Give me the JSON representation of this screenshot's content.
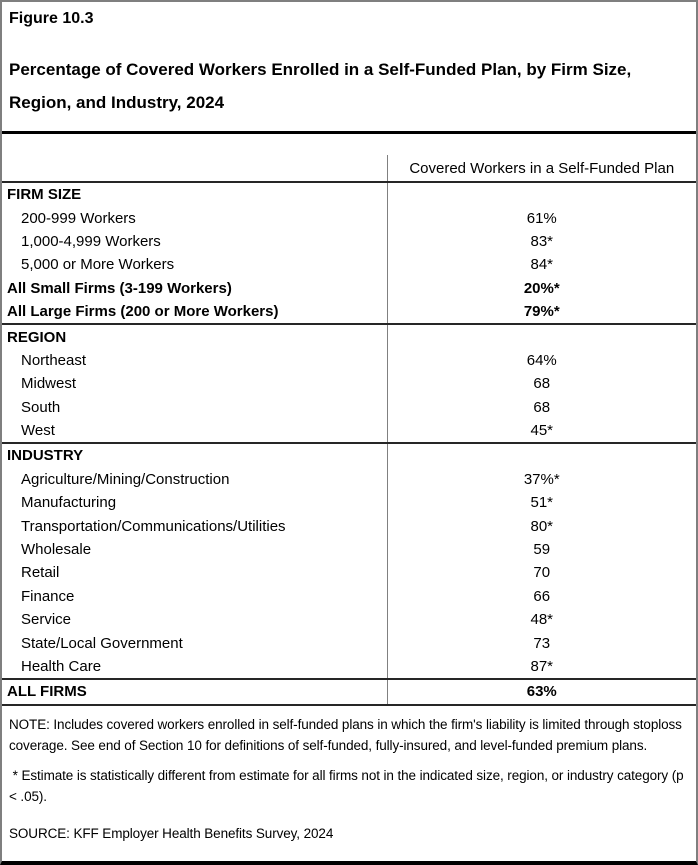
{
  "figure_label": "Figure 10.3",
  "title": "Percentage of Covered Workers Enrolled in a Self-Funded Plan, by Firm Size, Region, and Industry, 2024",
  "colors": {
    "text": "#000000",
    "rules": "#000000",
    "column_divider": "#808080",
    "background": "#ffffff"
  },
  "table": {
    "value_column_header": "Covered Workers in a Self-Funded Plan",
    "rows": [
      {
        "label": "FIRM SIZE",
        "value": "",
        "style": "section",
        "section_end": false
      },
      {
        "label": "200-999 Workers",
        "value": "61%",
        "style": "item",
        "section_end": false
      },
      {
        "label": "1,000-4,999 Workers",
        "value": "83*",
        "style": "item",
        "section_end": false
      },
      {
        "label": "5,000 or More Workers",
        "value": "84*",
        "style": "item",
        "section_end": false
      },
      {
        "label": "All Small Firms (3-199 Workers)",
        "value": "20%*",
        "style": "bold",
        "section_end": false
      },
      {
        "label": "All Large Firms (200 or More Workers)",
        "value": "79%*",
        "style": "bold",
        "section_end": true
      },
      {
        "label": "REGION",
        "value": "",
        "style": "section",
        "section_end": false
      },
      {
        "label": "Northeast",
        "value": "64%",
        "style": "item",
        "section_end": false
      },
      {
        "label": "Midwest",
        "value": "68",
        "style": "item",
        "section_end": false
      },
      {
        "label": "South",
        "value": "68",
        "style": "item",
        "section_end": false
      },
      {
        "label": "West",
        "value": "45*",
        "style": "item",
        "section_end": true
      },
      {
        "label": "INDUSTRY",
        "value": "",
        "style": "section",
        "section_end": false
      },
      {
        "label": "Agriculture/Mining/Construction",
        "value": "37%*",
        "style": "item",
        "section_end": false
      },
      {
        "label": "Manufacturing",
        "value": "51*",
        "style": "item",
        "section_end": false
      },
      {
        "label": "Transportation/Communications/Utilities",
        "value": "80*",
        "style": "item",
        "section_end": false
      },
      {
        "label": "Wholesale",
        "value": "59",
        "style": "item",
        "section_end": false
      },
      {
        "label": "Retail",
        "value": "70",
        "style": "item",
        "section_end": false
      },
      {
        "label": "Finance",
        "value": "66",
        "style": "item",
        "section_end": false
      },
      {
        "label": "Service",
        "value": "48*",
        "style": "item",
        "section_end": false
      },
      {
        "label": "State/Local Government",
        "value": "73",
        "style": "item",
        "section_end": false
      },
      {
        "label": "Health Care",
        "value": "87*",
        "style": "item",
        "section_end": true
      },
      {
        "label": "ALL FIRMS",
        "value": "63%",
        "style": "total",
        "section_end": true
      }
    ]
  },
  "notes": {
    "note": "NOTE: Includes covered workers enrolled in self-funded plans in which the firm's liability is limited through stoploss coverage. See end of Section 10 for definitions of self-funded, fully-insured, and level-funded premium plans.",
    "asterisk_note": " * Estimate is statistically different from estimate for all firms not in the indicated size, region, or industry category (p < .05).",
    "source": "SOURCE: KFF Employer Health Benefits Survey, 2024"
  }
}
